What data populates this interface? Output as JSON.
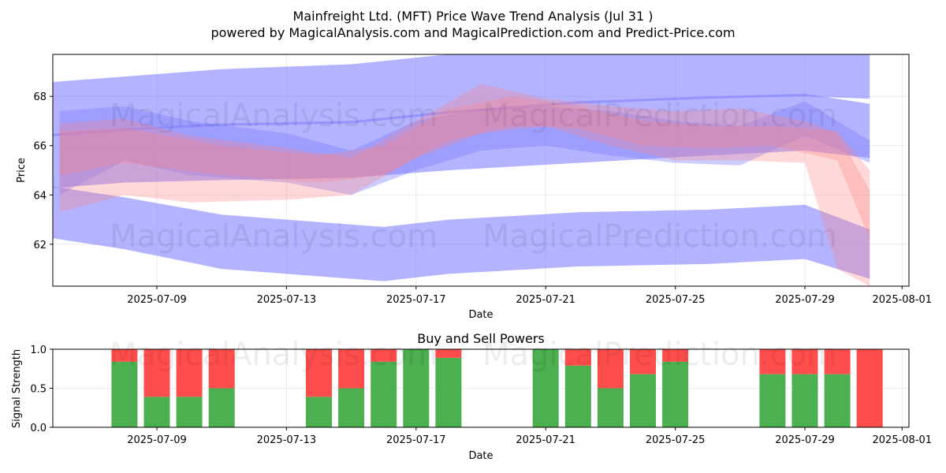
{
  "title": "Mainfreight Ltd. (MFT) Price Wave Trend Analysis (Jul 31 )",
  "subtitle": "powered by MagicalAnalysis.com and MagicalPrediction.com and Predict-Price.com",
  "watermarks": [
    "MagicalAnalysis.com",
    "MagicalPrediction.com"
  ],
  "colors": {
    "buy": "#4caf50",
    "sell": "#ff4d4d",
    "blue_band": "#8080ff",
    "red_band": "#ff8080"
  },
  "chart_data": [
    {
      "type": "area",
      "xlabel": "Date",
      "ylabel": "Price",
      "xlim": [
        "2025-07-05",
        "2025-08-01"
      ],
      "ylim": [
        60.3,
        69.7
      ],
      "x_ticks": [
        "2025-07-09",
        "2025-07-13",
        "2025-07-17",
        "2025-07-21",
        "2025-07-25",
        "2025-07-29",
        "2025-08-01"
      ],
      "y_ticks": [
        62,
        64,
        66,
        68
      ],
      "grid": true,
      "bands": [
        {
          "color": "blue",
          "x": [
            "2025-07-05",
            "2025-07-08",
            "2025-07-11",
            "2025-07-15",
            "2025-07-18",
            "2025-07-22",
            "2025-07-26",
            "2025-07-29",
            "2025-07-31"
          ],
          "upper": [
            68.5,
            68.8,
            69.1,
            69.3,
            69.7,
            69.8,
            69.8,
            69.9,
            69.9
          ],
          "lower": [
            66.3,
            66.6,
            66.8,
            66.9,
            67.3,
            67.7,
            67.9,
            68.0,
            67.9
          ]
        },
        {
          "color": "blue",
          "x": [
            "2025-07-05",
            "2025-07-08",
            "2025-07-11",
            "2025-07-15",
            "2025-07-18",
            "2025-07-22",
            "2025-07-26",
            "2025-07-29",
            "2025-07-31"
          ],
          "upper": [
            66.4,
            66.7,
            66.9,
            67.0,
            67.4,
            67.8,
            68.0,
            68.1,
            67.7
          ],
          "lower": [
            64.2,
            64.5,
            64.6,
            64.7,
            65.0,
            65.3,
            65.6,
            65.8,
            65.5
          ]
        },
        {
          "color": "blue",
          "x": [
            "2025-07-05",
            "2025-07-08",
            "2025-07-11",
            "2025-07-14",
            "2025-07-16",
            "2025-07-18",
            "2025-07-22",
            "2025-07-26",
            "2025-07-29",
            "2025-07-31"
          ],
          "upper": [
            64.5,
            63.9,
            63.2,
            62.9,
            62.7,
            63.0,
            63.3,
            63.4,
            63.6,
            62.6
          ],
          "lower": [
            62.4,
            61.8,
            61.0,
            60.7,
            60.5,
            60.8,
            61.1,
            61.2,
            61.4,
            60.6
          ]
        },
        {
          "color": "blue",
          "x": [
            "2025-07-06",
            "2025-07-08",
            "2025-07-10",
            "2025-07-13",
            "2025-07-15",
            "2025-07-17",
            "2025-07-19",
            "2025-07-21",
            "2025-07-23",
            "2025-07-25",
            "2025-07-27",
            "2025-07-29",
            "2025-07-31"
          ],
          "upper": [
            67.4,
            67.6,
            67.0,
            66.5,
            65.8,
            67.0,
            67.5,
            67.6,
            67.4,
            67.0,
            66.8,
            67.8,
            66.2
          ],
          "lower": [
            64.0,
            65.4,
            64.8,
            64.5,
            64.0,
            65.0,
            65.8,
            66.0,
            65.6,
            65.3,
            65.2,
            66.4,
            65.3
          ]
        },
        {
          "color": "red",
          "x": [
            "2025-07-06",
            "2025-07-08",
            "2025-07-10",
            "2025-07-13",
            "2025-07-15",
            "2025-07-17",
            "2025-07-19",
            "2025-07-21",
            "2025-07-23",
            "2025-07-25",
            "2025-07-27",
            "2025-07-29",
            "2025-07-30",
            "2025-07-31"
          ],
          "upper": [
            66.9,
            67.1,
            66.4,
            65.9,
            65.5,
            67.0,
            68.5,
            67.9,
            67.6,
            67.4,
            67.5,
            67.0,
            66.5,
            64.2
          ],
          "lower": [
            63.3,
            64.0,
            63.7,
            63.8,
            64.0,
            65.5,
            66.5,
            66.8,
            66.0,
            65.4,
            65.4,
            65.3,
            61.0,
            60.3
          ]
        },
        {
          "color": "red",
          "x": [
            "2025-07-06",
            "2025-07-08",
            "2025-07-11",
            "2025-07-14",
            "2025-07-16",
            "2025-07-18",
            "2025-07-20",
            "2025-07-22",
            "2025-07-24",
            "2025-07-26",
            "2025-07-28",
            "2025-07-30",
            "2025-07-31"
          ],
          "upper": [
            66.6,
            66.7,
            66.0,
            65.6,
            66.0,
            67.5,
            68.0,
            67.6,
            67.0,
            66.8,
            66.8,
            66.6,
            65.0
          ],
          "lower": [
            64.8,
            65.3,
            64.8,
            64.5,
            64.8,
            66.2,
            66.8,
            66.7,
            66.0,
            65.9,
            66.0,
            65.4,
            62.2
          ]
        }
      ]
    },
    {
      "type": "bar",
      "title": "Buy and Sell Powers",
      "xlabel": "Date",
      "ylabel": "Signal Strength",
      "ylim": [
        0.0,
        1.0
      ],
      "y_ticks": [
        "0.0",
        "0.5",
        "1.0"
      ],
      "x_ticks": [
        "2025-07-09",
        "2025-07-13",
        "2025-07-17",
        "2025-07-21",
        "2025-07-25",
        "2025-07-29",
        "2025-08-01"
      ],
      "grid": true,
      "categories": [
        "2025-07-08",
        "2025-07-09",
        "2025-07-10",
        "2025-07-11",
        "2025-07-14",
        "2025-07-15",
        "2025-07-16",
        "2025-07-17",
        "2025-07-18",
        "2025-07-21",
        "2025-07-22",
        "2025-07-23",
        "2025-07-24",
        "2025-07-25",
        "2025-07-28",
        "2025-07-29",
        "2025-07-30",
        "2025-07-31"
      ],
      "series": [
        {
          "values": [
            0.84,
            0.39,
            0.39,
            0.5,
            0.39,
            0.5,
            0.84,
            1.0,
            0.89,
            1.0,
            0.79,
            0.5,
            0.68,
            0.84,
            0.68,
            0.68,
            0.68,
            0.0
          ]
        },
        {
          "values": [
            0.16,
            0.61,
            0.61,
            0.5,
            0.61,
            0.5,
            0.16,
            0.0,
            0.11,
            0.0,
            0.21,
            0.5,
            0.32,
            0.16,
            0.32,
            0.32,
            0.32,
            1.0
          ]
        }
      ]
    }
  ]
}
